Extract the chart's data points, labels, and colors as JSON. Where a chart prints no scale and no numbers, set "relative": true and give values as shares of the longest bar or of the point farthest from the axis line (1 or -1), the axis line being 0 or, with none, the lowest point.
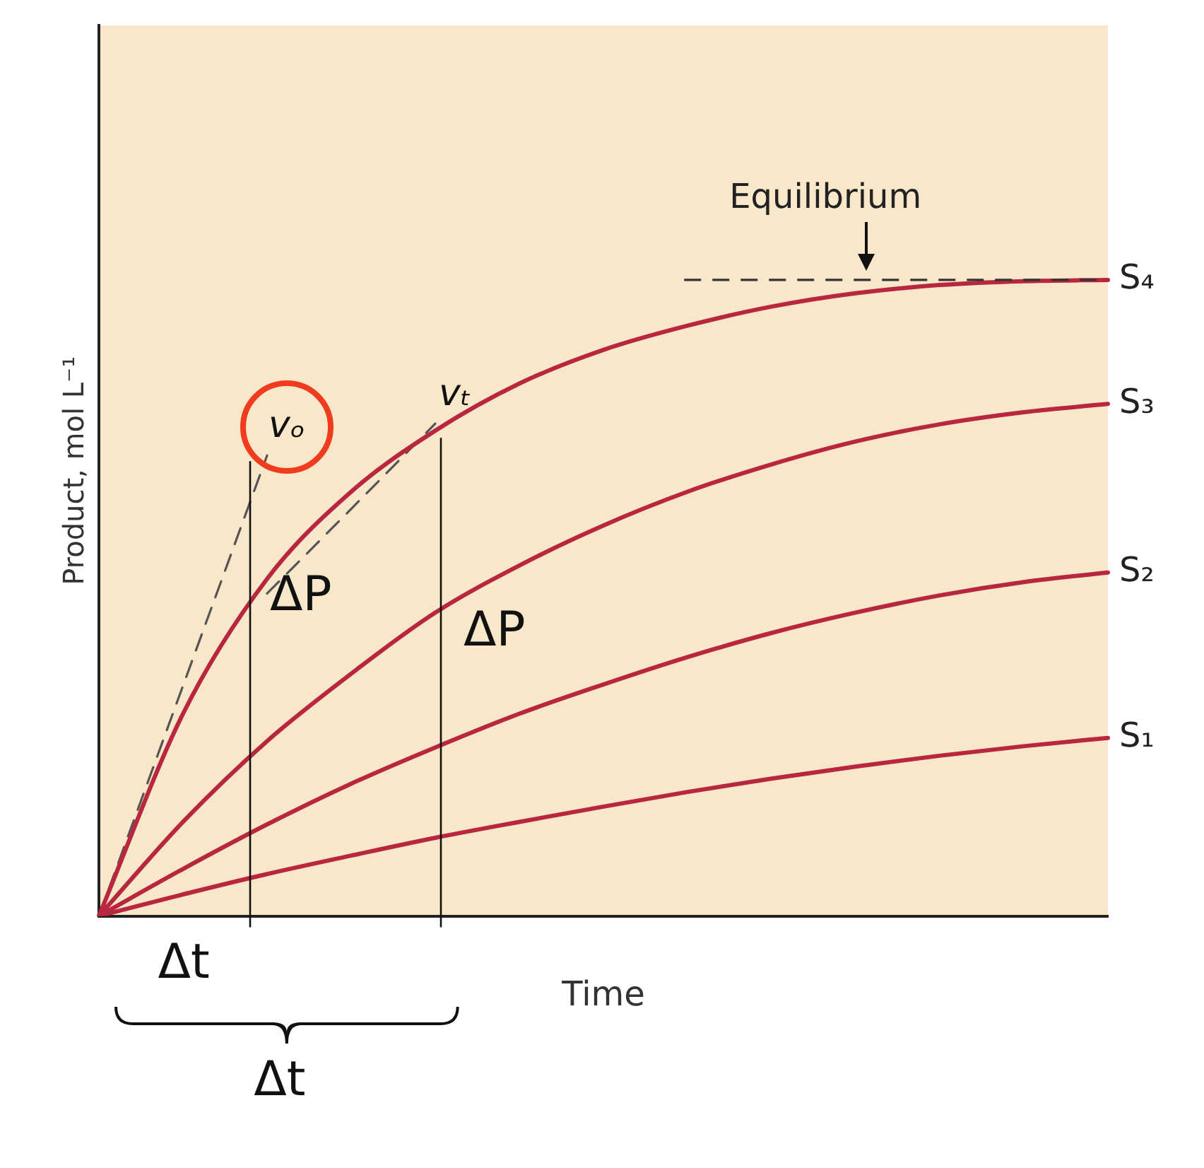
{
  "chart_data": {
    "type": "line",
    "relative": true,
    "xlabel": "Time",
    "ylabel": "Product, mol L⁻¹",
    "categories": [
      null,
      null,
      null,
      null,
      null,
      null,
      null,
      null,
      null,
      null,
      null,
      null,
      null
    ],
    "series": [
      {
        "name": "S₁",
        "color": "#b8263f",
        "values": [
          0,
          0.034,
          0.066,
          0.095,
          0.123,
          0.148,
          0.172,
          0.195,
          0.216,
          0.235,
          0.252,
          0.267,
          0.28
        ]
      },
      {
        "name": "S₂",
        "color": "#b8263f",
        "values": [
          0,
          0.074,
          0.144,
          0.208,
          0.265,
          0.318,
          0.364,
          0.407,
          0.445,
          0.477,
          0.504,
          0.525,
          0.54
        ]
      },
      {
        "name": "S₃",
        "color": "#b8263f",
        "values": [
          0,
          0.148,
          0.275,
          0.381,
          0.477,
          0.551,
          0.614,
          0.667,
          0.71,
          0.746,
          0.773,
          0.792,
          0.805
        ]
      },
      {
        "name": "S₄",
        "color": "#b8263f",
        "values": [
          0,
          0.318,
          0.53,
          0.667,
          0.763,
          0.837,
          0.89,
          0.928,
          0.958,
          0.979,
          0.992,
          0.998,
          1
        ]
      },
      {
        "color": "#555555",
        "line_style": "dashed",
        "values": [
          0,
          0.362,
          0.724,
          null,
          null,
          null,
          null,
          null,
          null,
          null,
          null,
          null,
          null
        ]
      },
      {
        "color": "#555555",
        "line_style": "dashed",
        "values": [
          null,
          null,
          0.507,
          0.64,
          0.774,
          null,
          null,
          null,
          null,
          null,
          null,
          null,
          null
        ]
      }
    ],
    "ref_lines": [
      {
        "axis": "y",
        "value": 1,
        "label": "Equilibrium",
        "color": "#333333",
        "line_style": "dashed"
      }
    ],
    "annotations": [
      "vₒ",
      "vₜ",
      "ΔP",
      "ΔP",
      "Δt",
      "Δt"
    ],
    "grid": false,
    "legend": false,
    "marker": "none",
    "line_style": "solid"
  }
}
